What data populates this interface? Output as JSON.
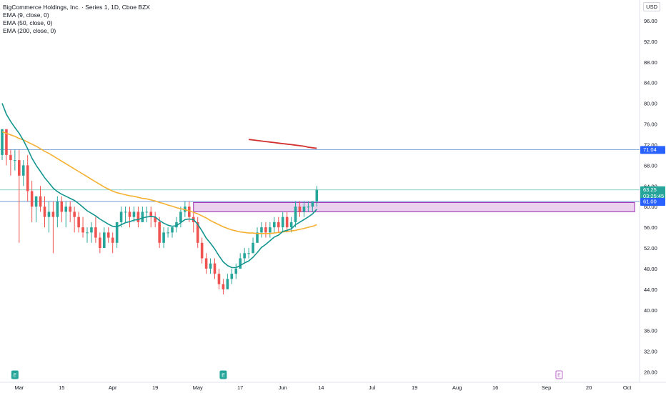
{
  "legend": {
    "title": "BigCommerce Holdings, Inc. · Series 1, 1D, Cboe BZX",
    "indicators": [
      "EMA (9, close, 0)",
      "EMA (50, close, 0)",
      "EMA (200, close, 0)"
    ]
  },
  "currency": "USD",
  "colors": {
    "up": "#26a69a",
    "down": "#ef5350",
    "ema9": "#14958f",
    "ema50": "#f5b031",
    "ema200": "#d32f2f",
    "hline": "#4a7ec9",
    "zone_fill": "#e1bee7",
    "zone_border": "#9c27b0",
    "last_price_bg": "#26a69a",
    "level_bg": "#2962ff"
  },
  "chart_data": {
    "type": "candlestick",
    "ylim": [
      26,
      100
    ],
    "y_ticks": [
      28,
      32,
      36,
      40,
      44,
      48,
      52,
      56,
      60,
      64,
      68,
      72,
      76,
      80,
      84,
      88,
      92,
      96
    ],
    "x_ticks": [
      {
        "label": "Mar",
        "bar": 4
      },
      {
        "label": "15",
        "bar": 14
      },
      {
        "label": "Apr",
        "bar": 26
      },
      {
        "label": "19",
        "bar": 36
      },
      {
        "label": "May",
        "bar": 46
      },
      {
        "label": "17",
        "bar": 56
      },
      {
        "label": "Jun",
        "bar": 66
      },
      {
        "label": "14",
        "bar": 75
      },
      {
        "label": "Jul",
        "bar": 87
      },
      {
        "label": "19",
        "bar": 97
      },
      {
        "label": "Aug",
        "bar": 107
      },
      {
        "label": "16",
        "bar": 116
      },
      {
        "label": "Sep",
        "bar": 128
      },
      {
        "label": "20",
        "bar": 138
      },
      {
        "label": "Oct",
        "bar": 147
      }
    ],
    "candles": [
      [
        70,
        75,
        69,
        75
      ],
      [
        75,
        75,
        68,
        70
      ],
      [
        70,
        71,
        66,
        69
      ],
      [
        69,
        71,
        67,
        69
      ],
      [
        69,
        71,
        53,
        66
      ],
      [
        66,
        69,
        64,
        68
      ],
      [
        68,
        70,
        61,
        63
      ],
      [
        63,
        65,
        57,
        60
      ],
      [
        60,
        62,
        57,
        62
      ],
      [
        62,
        64,
        59,
        60
      ],
      [
        60,
        62,
        56,
        58
      ],
      [
        58,
        61,
        55,
        59
      ],
      [
        59,
        61,
        51,
        58
      ],
      [
        58,
        62,
        56,
        61
      ],
      [
        61,
        62,
        57,
        59
      ],
      [
        59,
        61,
        56,
        60
      ],
      [
        60,
        61,
        57,
        59
      ],
      [
        59,
        60,
        55,
        58
      ],
      [
        58,
        59,
        55,
        56
      ],
      [
        56,
        58,
        54,
        55
      ],
      [
        55,
        56,
        53,
        55
      ],
      [
        55,
        57,
        53,
        56
      ],
      [
        56,
        58,
        53,
        54
      ],
      [
        54,
        55,
        51,
        52
      ],
      [
        52,
        56,
        52,
        55
      ],
      [
        55,
        56,
        53,
        54
      ],
      [
        54,
        55,
        51,
        53
      ],
      [
        53,
        57,
        52,
        57
      ],
      [
        57,
        60,
        56,
        59
      ],
      [
        59,
        60,
        57,
        59
      ],
      [
        59,
        60,
        56,
        58
      ],
      [
        58,
        60,
        57,
        59
      ],
      [
        59,
        60,
        56,
        57
      ],
      [
        57,
        60,
        57,
        59
      ],
      [
        59,
        60,
        57,
        59
      ],
      [
        59,
        60,
        56,
        58
      ],
      [
        58,
        59,
        56,
        57
      ],
      [
        57,
        58,
        52,
        53
      ],
      [
        53,
        56,
        52,
        55
      ],
      [
        55,
        56,
        54,
        55
      ],
      [
        55,
        56,
        54,
        56
      ],
      [
        56,
        58,
        55,
        57
      ],
      [
        57,
        60,
        56,
        59
      ],
      [
        59,
        61,
        58,
        60
      ],
      [
        60,
        61,
        57,
        58
      ],
      [
        58,
        59,
        55,
        57
      ],
      [
        57,
        58,
        52,
        53
      ],
      [
        53,
        54,
        49,
        50
      ],
      [
        50,
        51,
        47,
        48
      ],
      [
        48,
        50,
        47,
        49
      ],
      [
        49,
        50,
        46,
        47
      ],
      [
        47,
        48,
        44,
        45
      ],
      [
        45,
        46,
        43,
        44
      ],
      [
        44,
        47,
        44,
        46
      ],
      [
        46,
        48,
        45,
        47
      ],
      [
        47,
        49,
        46,
        48
      ],
      [
        48,
        51,
        48,
        50
      ],
      [
        50,
        52,
        49,
        51
      ],
      [
        51,
        52,
        50,
        51
      ],
      [
        51,
        54,
        51,
        53
      ],
      [
        53,
        56,
        53,
        55
      ],
      [
        55,
        57,
        54,
        56
      ],
      [
        56,
        57,
        54,
        55
      ],
      [
        55,
        57,
        54,
        56
      ],
      [
        56,
        58,
        55,
        57
      ],
      [
        57,
        58,
        55,
        56
      ],
      [
        56,
        59,
        55,
        58
      ],
      [
        58,
        59,
        55,
        56
      ],
      [
        56,
        58,
        55,
        57
      ],
      [
        57,
        61,
        56,
        60
      ],
      [
        60,
        61,
        58,
        59
      ],
      [
        59,
        61,
        58,
        60
      ],
      [
        60,
        61,
        59,
        60
      ],
      [
        60,
        61,
        59,
        61
      ],
      [
        61,
        64,
        60,
        63.25
      ]
    ],
    "ema9": [
      80,
      77.9,
      76.5,
      75.3,
      74.2,
      72.8,
      71.2,
      69.4,
      68,
      66.8,
      65.6,
      64.6,
      63.6,
      62.9,
      62.4,
      62,
      61.6,
      61.2,
      60.6,
      59.9,
      59.2,
      58.7,
      58.2,
      57.6,
      57.1,
      56.6,
      56.2,
      56.1,
      56.5,
      56.9,
      57.1,
      57.4,
      57.5,
      57.8,
      58,
      58.1,
      58,
      57.3,
      56.8,
      56.4,
      56.2,
      56.3,
      56.9,
      57.5,
      57.6,
      57.5,
      56.6,
      55.3,
      53.9,
      52.9,
      51.8,
      50.5,
      49.3,
      48.6,
      48.2,
      48.2,
      48.6,
      49.1,
      49.5,
      50.2,
      51.1,
      52.1,
      52.7,
      53.4,
      54.1,
      54.5,
      55.2,
      55.4,
      55.7,
      56.5,
      57,
      57.5,
      58,
      58.6,
      59.5
    ],
    "ema50": [
      74.5,
      74.2,
      73.9,
      73.6,
      73.2,
      72.9,
      72.5,
      72.1,
      71.7,
      71.2,
      70.7,
      70.3,
      69.8,
      69.3,
      68.8,
      68.3,
      67.8,
      67.3,
      66.8,
      66.3,
      65.8,
      65.3,
      64.8,
      64.3,
      63.8,
      63.4,
      63,
      62.7,
      62.5,
      62.3,
      62.1,
      62,
      61.8,
      61.6,
      61.5,
      61.3,
      61.1,
      60.8,
      60.6,
      60.3,
      60.1,
      59.8,
      59.6,
      59.4,
      59.2,
      58.9,
      58.6,
      58.2,
      57.8,
      57.3,
      56.9,
      56.5,
      56.1,
      55.8,
      55.5,
      55.3,
      55.1,
      55,
      54.9,
      54.9,
      54.8,
      54.8,
      54.8,
      54.8,
      54.9,
      55,
      55.1,
      55.2,
      55.3,
      55.4,
      55.6,
      55.8,
      56,
      56.2,
      56.5
    ],
    "ema200": {
      "start_bar": 58,
      "values": [
        73,
        72.9,
        72.8,
        72.7,
        72.6,
        72.5,
        72.4,
        72.3,
        72.2,
        72.1,
        72,
        71.9,
        71.8,
        71.7,
        71.5,
        71.4,
        71.3
      ]
    },
    "horizontal_lines": [
      {
        "price": 71.04,
        "color": "#4a7ec9",
        "label": "71.04"
      },
      {
        "price": 63.25,
        "color": "#26a69a",
        "label": "63.25"
      },
      {
        "price": 61.0,
        "color": "#4a7ec9",
        "label": "61.00"
      }
    ],
    "zone": {
      "top": 60.8,
      "bottom": 59.0,
      "start_bar": 45
    },
    "last_price": {
      "value": "63.25",
      "countdown": "03:25:45"
    },
    "events": [
      {
        "bar": 3,
        "type": "E",
        "color": "#26a69a"
      },
      {
        "bar": 52,
        "type": "E",
        "color": "#26a69a"
      },
      {
        "bar": 131,
        "type": "E",
        "color": "#ba68c8"
      }
    ]
  }
}
